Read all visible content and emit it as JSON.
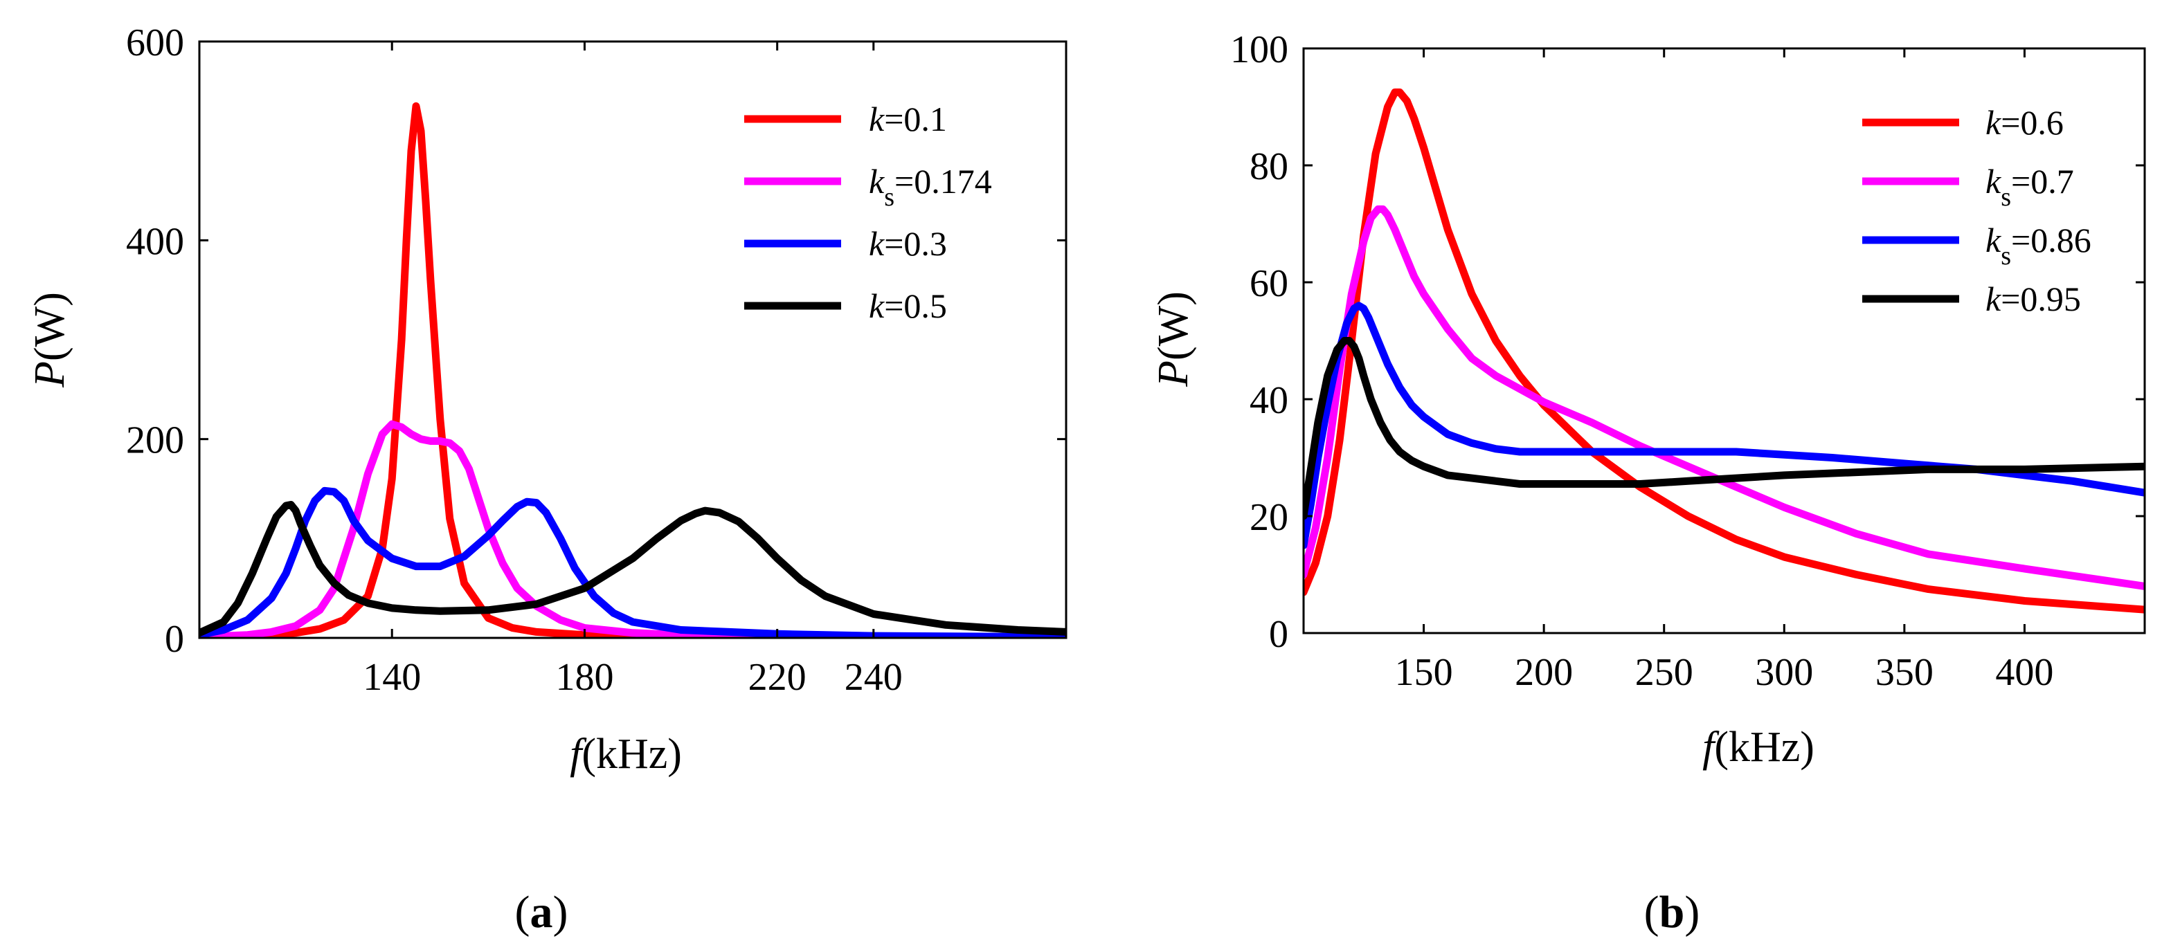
{
  "chart_data": [
    {
      "id": "a",
      "type": "line",
      "caption_open": "(",
      "caption_letter": "a",
      "caption_close": ")",
      "title": "",
      "xlabel": {
        "var": "f",
        "unit": "(kHz)"
      },
      "ylabel": {
        "var": "P",
        "unit": "(W)"
      },
      "xlim": [
        100,
        280
      ],
      "ylim": [
        0,
        600
      ],
      "xticks": [
        140,
        180,
        220,
        240
      ],
      "yticks": [
        0,
        200,
        400,
        600
      ],
      "grid": false,
      "legend_position": "top-right",
      "series": [
        {
          "name": "k=0.1",
          "label_var": "k",
          "label_sub": "",
          "label_value": "=0.1",
          "color": "#ff0000",
          "x": [
            100,
            110,
            120,
            125,
            130,
            135,
            138,
            140,
            142,
            143,
            144,
            145,
            146,
            147,
            148,
            150,
            152,
            155,
            160,
            165,
            170,
            180,
            200,
            240,
            280
          ],
          "y": [
            1,
            2,
            5,
            9,
            18,
            42,
            90,
            160,
            300,
            400,
            490,
            535,
            510,
            440,
            360,
            220,
            120,
            55,
            20,
            10,
            6,
            3,
            1,
            0.5,
            0.3
          ]
        },
        {
          "name": "ks=0.174",
          "label_var": "k",
          "label_sub": "s",
          "label_value": "=0.174",
          "color": "#ff00ff",
          "x": [
            100,
            110,
            115,
            120,
            125,
            128,
            132,
            135,
            138,
            140,
            142,
            144,
            146,
            148,
            150,
            152,
            154,
            156,
            158,
            160,
            163,
            166,
            170,
            175,
            180,
            190,
            200,
            220,
            240,
            280
          ],
          "y": [
            1,
            3,
            6,
            12,
            28,
            50,
            110,
            165,
            205,
            215,
            212,
            205,
            200,
            198,
            198,
            196,
            188,
            170,
            140,
            110,
            75,
            50,
            32,
            18,
            10,
            5,
            3,
            1,
            0.5,
            0.3
          ]
        },
        {
          "name": "k=0.3",
          "label_var": "k",
          "label_sub": "",
          "label_value": "=0.3",
          "color": "#0000ff",
          "x": [
            100,
            105,
            110,
            115,
            118,
            120,
            122,
            124,
            126,
            128,
            130,
            132,
            135,
            140,
            145,
            150,
            155,
            160,
            163,
            166,
            168,
            170,
            172,
            175,
            178,
            182,
            186,
            190,
            200,
            210,
            220,
            240,
            280
          ],
          "y": [
            3,
            8,
            18,
            40,
            65,
            90,
            118,
            138,
            148,
            147,
            138,
            118,
            98,
            80,
            72,
            72,
            82,
            103,
            118,
            132,
            137,
            136,
            126,
            100,
            70,
            42,
            25,
            16,
            8,
            6,
            4,
            2,
            1
          ]
        },
        {
          "name": "k=0.5",
          "label_var": "k",
          "label_sub": "",
          "label_value": "=0.5",
          "color": "#000000",
          "x": [
            100,
            105,
            108,
            111,
            114,
            116,
            118,
            119,
            120,
            121,
            123,
            125,
            128,
            131,
            135,
            140,
            145,
            150,
            160,
            170,
            180,
            190,
            195,
            200,
            203,
            205,
            208,
            212,
            216,
            220,
            225,
            230,
            240,
            255,
            270,
            280
          ],
          "y": [
            5,
            16,
            35,
            65,
            100,
            122,
            133,
            134,
            128,
            115,
            93,
            73,
            55,
            43,
            35,
            30,
            28,
            27,
            28,
            34,
            50,
            80,
            100,
            118,
            125,
            128,
            126,
            117,
            100,
            80,
            58,
            42,
            24,
            13,
            8,
            6
          ]
        }
      ]
    },
    {
      "id": "b",
      "type": "line",
      "caption_open": "(",
      "caption_letter": "b",
      "caption_close": ")",
      "title": "",
      "xlabel": {
        "var": "f",
        "unit": "(kHz)"
      },
      "ylabel": {
        "var": "P",
        "unit": "(W)"
      },
      "xlim": [
        100,
        450
      ],
      "ylim": [
        0,
        100
      ],
      "xticks": [
        150,
        200,
        250,
        300,
        350,
        400
      ],
      "yticks": [
        0,
        20,
        40,
        60,
        80,
        100
      ],
      "grid": false,
      "legend_position": "top-right",
      "series": [
        {
          "name": "k=0.6",
          "label_var": "k",
          "label_sub": "",
          "label_value": "=0.6",
          "color": "#ff0000",
          "x": [
            100,
            105,
            110,
            115,
            120,
            125,
            130,
            135,
            138,
            140,
            143,
            146,
            150,
            155,
            160,
            170,
            180,
            190,
            200,
            220,
            240,
            260,
            280,
            300,
            330,
            360,
            400,
            450
          ],
          "y": [
            7,
            12,
            20,
            33,
            50,
            68,
            82,
            90,
            92.5,
            92.5,
            91,
            88,
            83,
            76,
            69,
            58,
            50,
            44,
            39,
            31,
            25,
            20,
            16,
            13,
            10,
            7.5,
            5.5,
            4
          ]
        },
        {
          "name": "ks=0.7",
          "label_var": "k",
          "label_sub": "s",
          "label_value": "=0.7",
          "color": "#ff00ff",
          "x": [
            100,
            105,
            110,
            115,
            120,
            125,
            128,
            131,
            133,
            135,
            138,
            142,
            146,
            150,
            160,
            170,
            180,
            200,
            220,
            240,
            260,
            280,
            300,
            330,
            360,
            400,
            450
          ],
          "y": [
            10,
            18,
            30,
            45,
            58,
            67,
            71,
            72.5,
            72.5,
            71.5,
            69,
            65,
            61,
            58,
            52,
            47,
            44,
            39.5,
            36,
            32,
            28.5,
            25,
            21.5,
            17,
            13.5,
            11,
            8
          ]
        },
        {
          "name": "ks=0.86",
          "label_var": "k",
          "label_sub": "s",
          "label_value": "=0.86",
          "color": "#0000ff",
          "x": [
            100,
            103,
            106,
            110,
            114,
            118,
            121,
            123,
            125,
            127,
            130,
            135,
            140,
            145,
            150,
            160,
            170,
            180,
            190,
            200,
            220,
            250,
            280,
            300,
            320,
            350,
            380,
            400,
            420,
            450
          ],
          "y": [
            15,
            22,
            30,
            39,
            47,
            53,
            55.5,
            56,
            55.5,
            54,
            51,
            46,
            42,
            39,
            37,
            34,
            32.5,
            31.5,
            31,
            31,
            31,
            31,
            31,
            30.5,
            30,
            29,
            28,
            27,
            26,
            24
          ]
        },
        {
          "name": "k=0.95",
          "label_var": "k",
          "label_sub": "",
          "label_value": "=0.95",
          "color": "#000000",
          "x": [
            100,
            103,
            106,
            110,
            114,
            117,
            119,
            121,
            123,
            125,
            128,
            132,
            136,
            140,
            145,
            150,
            160,
            170,
            180,
            190,
            200,
            210,
            220,
            240,
            260,
            280,
            300,
            330,
            360,
            400,
            450
          ],
          "y": [
            20,
            28,
            36,
            44,
            48.5,
            50,
            50,
            49,
            47,
            44,
            40,
            36,
            33,
            31,
            29.5,
            28.5,
            27,
            26.5,
            26,
            25.5,
            25.5,
            25.5,
            25.5,
            25.5,
            26,
            26.5,
            27,
            27.5,
            28,
            28,
            28.5
          ]
        }
      ]
    }
  ]
}
